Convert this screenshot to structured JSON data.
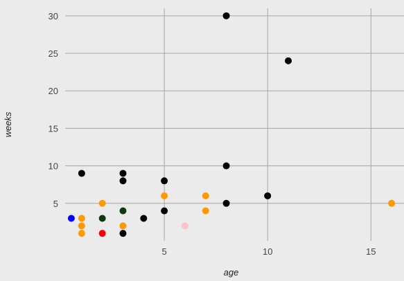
{
  "chart_data": {
    "type": "scatter",
    "title": "",
    "xlabel": "age",
    "ylabel": "weeks",
    "xlim": [
      0.2,
      16.6
    ],
    "ylim": [
      0,
      31
    ],
    "x_ticks": [
      5,
      10,
      15
    ],
    "y_ticks": [
      5,
      10,
      15,
      20,
      25,
      30
    ],
    "grid": true,
    "legend": "none",
    "points": [
      {
        "x": 8,
        "y": 30,
        "color": "#000000"
      },
      {
        "x": 11,
        "y": 24,
        "color": "#000000"
      },
      {
        "x": 1,
        "y": 9,
        "color": "#000000"
      },
      {
        "x": 3,
        "y": 9,
        "color": "#000000"
      },
      {
        "x": 3,
        "y": 8,
        "color": "#000000"
      },
      {
        "x": 5,
        "y": 8,
        "color": "#000000"
      },
      {
        "x": 8,
        "y": 10,
        "color": "#000000"
      },
      {
        "x": 10,
        "y": 6,
        "color": "#000000"
      },
      {
        "x": 8,
        "y": 5,
        "color": "#000000"
      },
      {
        "x": 5,
        "y": 4,
        "color": "#000000"
      },
      {
        "x": 4,
        "y": 3,
        "color": "#000000"
      },
      {
        "x": 3,
        "y": 4,
        "color": "#0b3b0b"
      },
      {
        "x": 2,
        "y": 3,
        "color": "#0b3b0b"
      },
      {
        "x": 3,
        "y": 1,
        "color": "#000000"
      },
      {
        "x": 0.5,
        "y": 3,
        "color": "#0000ff"
      },
      {
        "x": 1,
        "y": 3,
        "color": "#ff9900"
      },
      {
        "x": 1,
        "y": 2,
        "color": "#ff9900"
      },
      {
        "x": 1,
        "y": 1,
        "color": "#ff9900"
      },
      {
        "x": 2,
        "y": 5,
        "color": "#ff9900"
      },
      {
        "x": 3,
        "y": 2,
        "color": "#ff9900"
      },
      {
        "x": 5,
        "y": 6,
        "color": "#ff9900"
      },
      {
        "x": 7,
        "y": 6,
        "color": "#ff9900"
      },
      {
        "x": 7,
        "y": 4,
        "color": "#ff9900"
      },
      {
        "x": 16,
        "y": 5,
        "color": "#ff9900"
      },
      {
        "x": 2,
        "y": 1,
        "color": "#ff0000"
      },
      {
        "x": 6,
        "y": 2,
        "color": "#ffc0cb"
      }
    ]
  }
}
